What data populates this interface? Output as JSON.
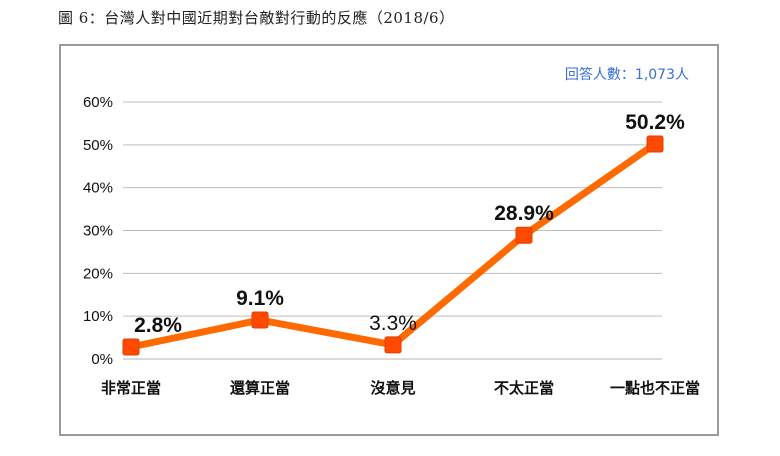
{
  "figure_title": "圖 6：台灣人對中國近期對台敵對行動的反應（2018/6）",
  "respondents_note": "回答人數：1,073人",
  "chart_data": {
    "type": "line",
    "title": "圖 6：台灣人對中國近期對台敵對行動的反應（2018/6）",
    "xlabel": "",
    "ylabel": "",
    "categories": [
      "非常正當",
      "還算正當",
      "沒意見",
      "不太正當",
      "一點也不正當"
    ],
    "values": [
      2.8,
      9.1,
      3.3,
      28.9,
      50.2
    ],
    "data_labels": [
      "2.8%",
      "9.1%",
      "3.3%",
      "28.9%",
      "50.2%"
    ],
    "ylim": [
      0,
      60
    ],
    "yticks": [
      0,
      10,
      20,
      30,
      40,
      50,
      60
    ],
    "ytick_labels": [
      "0%",
      "10%",
      "20%",
      "30%",
      "40%",
      "50%",
      "60%"
    ],
    "grid": true,
    "line_color": "#ff6a00",
    "marker_color": "#ff4a00",
    "label_light_index": 2
  }
}
